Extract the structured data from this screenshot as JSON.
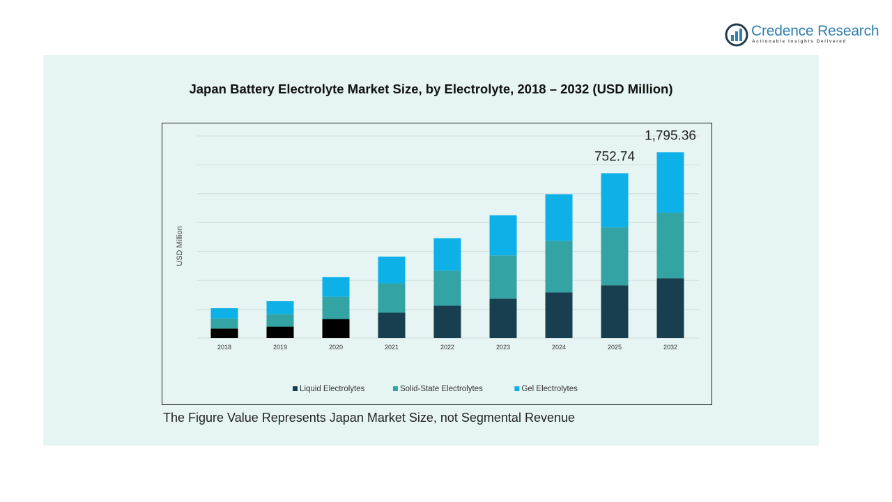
{
  "brand": {
    "name": "Credence Research",
    "tagline": "Actionable Insights Delivered",
    "colors": {
      "primary": "#2f7fb0",
      "dark": "#1f3c4d"
    }
  },
  "page": {
    "title": "Japan Battery Electrolyte  Market Size, by Electrolyte,  2018 – 2032 (USD Million)",
    "note": "The Figure Value Represents Japan Market Size,  not Segmental Revenue",
    "background": "#e6f5f3"
  },
  "chart_data": {
    "type": "bar",
    "stacked": true,
    "categories": [
      "2018",
      "2019",
      "2020",
      "2021",
      "2022",
      "2023",
      "2024",
      "2025",
      "2032"
    ],
    "ylabel": "USD Million",
    "xlabel": "",
    "grid": true,
    "legend_position": "bottom-center",
    "series": [
      {
        "name": "Liquid Electrolytes",
        "color": "#173f4f",
        "values": [
          15,
          18,
          30,
          40,
          51,
          62,
          72,
          83,
          94
        ]
      },
      {
        "name": "Solid-State Electrolytes",
        "color": "#33a3a3",
        "values": [
          16,
          20,
          35,
          46,
          55,
          68,
          81,
          91,
          103
        ]
      },
      {
        "name": "Gel Electrolytes",
        "color": "#0eb0e8",
        "values": [
          16,
          20,
          31,
          42,
          51,
          63,
          73,
          85,
          95
        ]
      }
    ],
    "first_bar_colors": [
      "#000000",
      "#000000",
      "#000000"
    ],
    "data_labels": [
      {
        "category": "2025",
        "text": "752.74"
      },
      {
        "category": "2032",
        "text": "1,795.36"
      }
    ]
  }
}
